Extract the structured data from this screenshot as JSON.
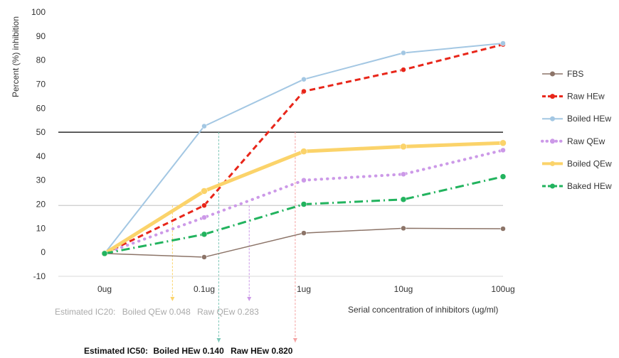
{
  "chart_data": {
    "type": "line",
    "categories": [
      "0ug",
      "0.1ug",
      "1ug",
      "10ug",
      "100ug"
    ],
    "ylabel": "Percent (%) inhibition",
    "xlabel": "Serial concentration of inhibitors (ug/ml)",
    "ylim": [
      -10,
      100
    ],
    "yticks": [
      -10,
      0,
      10,
      20,
      30,
      40,
      50,
      60,
      70,
      80,
      90,
      100
    ],
    "grid": false,
    "legend": "right",
    "reference_lines": [
      {
        "y": 50,
        "color": "#000000"
      },
      {
        "y": 19.5,
        "color": "#cccccc"
      }
    ],
    "series": [
      {
        "name": "FBS",
        "values": [
          -0.5,
          -2,
          8,
          10,
          9.8
        ],
        "color": "#8c7468",
        "style": "solid",
        "width": 1.5,
        "marker": 3.5
      },
      {
        "name": "Raw HEw",
        "values": [
          -0.5,
          19.5,
          67,
          76,
          86.5
        ],
        "color": "#e8261a",
        "style": "dashed",
        "width": 3,
        "marker": 3.5
      },
      {
        "name": "Boiled HEw",
        "values": [
          -0.5,
          52.5,
          72,
          83,
          87
        ],
        "color": "#a3c7e3",
        "style": "solid",
        "width": 2,
        "marker": 3.5
      },
      {
        "name": "Raw QEw",
        "values": [
          -0.5,
          14.5,
          30,
          32.5,
          42.5
        ],
        "color": "#cc99e8",
        "style": "dotted",
        "width": 4,
        "marker": 3.5
      },
      {
        "name": "Boiled QEw",
        "values": [
          -0.5,
          25.5,
          42,
          44,
          45.5
        ],
        "color": "#fbd36a",
        "style": "solid",
        "width": 5,
        "marker": 4.5
      },
      {
        "name": "Baked HEw",
        "values": [
          -0.5,
          7.5,
          20,
          22,
          31.5
        ],
        "color": "#22b35e",
        "style": "dashdot",
        "width": 3,
        "marker": 4
      }
    ],
    "annotations": {
      "ic20_label": "Estimated IC20:",
      "ic20_parts": [
        {
          "text": "Boiled QEw 0.048",
          "x": 0.048,
          "color": "#fbd36a"
        },
        {
          "text": "Raw QEw 0.283",
          "x": 0.283,
          "color": "#cc99e8"
        }
      ],
      "ic50_label": "Estimated IC50:",
      "ic50_parts": [
        {
          "text": "Boiled HEw 0.140",
          "x": 0.14,
          "color": "#7ec8b8"
        },
        {
          "text": "Raw HEw 0.820",
          "x": 0.82,
          "color": "#f4a3a3"
        }
      ]
    }
  }
}
